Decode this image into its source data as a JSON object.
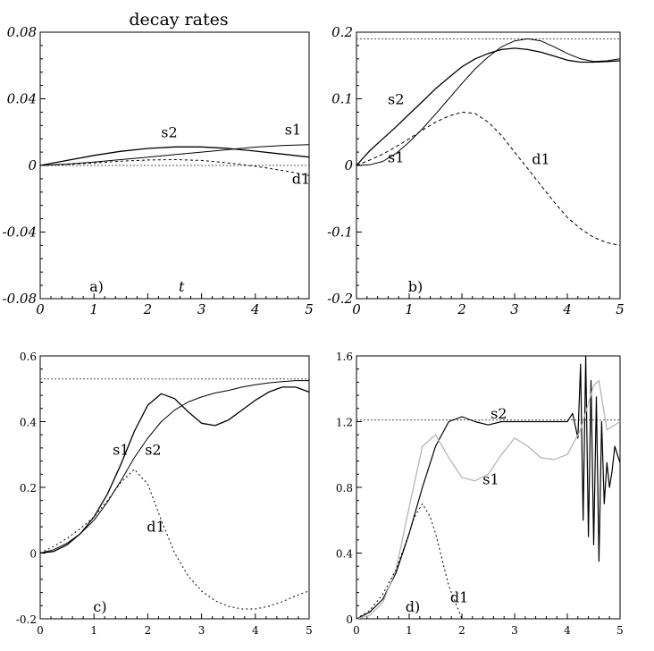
{
  "figure_title": "decay rates",
  "chart_data": [
    {
      "type": "line",
      "panel_label": "a)",
      "title": "decay rates",
      "xlabel": "t",
      "ylabel": "",
      "xlim": [
        0,
        5
      ],
      "ylim": [
        -0.08,
        0.08
      ],
      "x_ticks": [
        "0",
        "1",
        "2",
        "3",
        "4",
        "5"
      ],
      "y_ticks": [
        "0.08",
        "0.04",
        "0",
        "-0.04",
        "-0.08"
      ],
      "reference_line": 0,
      "grid": false,
      "series": [
        {
          "name": "s1",
          "x": [
            0,
            0.5,
            1,
            1.5,
            2,
            2.5,
            3,
            3.5,
            4,
            4.5,
            5
          ],
          "y": [
            0,
            0.0008,
            0.002,
            0.0035,
            0.005,
            0.0065,
            0.008,
            0.0095,
            0.011,
            0.012,
            0.0125
          ]
        },
        {
          "name": "s2",
          "x": [
            0,
            0.5,
            1,
            1.5,
            2,
            2.5,
            3,
            3.5,
            4,
            4.5,
            5
          ],
          "y": [
            0,
            0.003,
            0.006,
            0.0085,
            0.0102,
            0.0111,
            0.0111,
            0.0102,
            0.0086,
            0.0068,
            0.005
          ]
        },
        {
          "name": "d1",
          "x": [
            0,
            0.5,
            1,
            1.5,
            2,
            2.5,
            3,
            3.5,
            4,
            4.5,
            5
          ],
          "y": [
            0,
            0.0006,
            0.0015,
            0.0025,
            0.0033,
            0.0035,
            0.003,
            0.0015,
            -0.0005,
            -0.003,
            -0.006
          ]
        }
      ]
    },
    {
      "type": "line",
      "panel_label": "b)",
      "xlabel": "",
      "ylabel": "",
      "xlim": [
        0,
        5
      ],
      "ylim": [
        -0.2,
        0.2
      ],
      "x_ticks": [
        "0",
        "1",
        "2",
        "3",
        "4",
        "5"
      ],
      "y_ticks": [
        "0.2",
        "0.1",
        "0",
        "-0.1",
        "-0.2"
      ],
      "reference_line": 0.19,
      "grid": false,
      "series": [
        {
          "name": "s1",
          "x": [
            0,
            0.25,
            0.5,
            0.75,
            1,
            1.25,
            1.5,
            1.75,
            2,
            2.25,
            2.5,
            2.75,
            3,
            3.25,
            3.5,
            3.75,
            4,
            4.25,
            4.5,
            4.75,
            5
          ],
          "y": [
            0,
            0.001,
            0.006,
            0.018,
            0.035,
            0.055,
            0.077,
            0.1,
            0.123,
            0.145,
            0.163,
            0.178,
            0.187,
            0.19,
            0.187,
            0.178,
            0.168,
            0.16,
            0.156,
            0.157,
            0.16
          ]
        },
        {
          "name": "s2",
          "x": [
            0,
            0.25,
            0.5,
            0.75,
            1,
            1.25,
            1.5,
            1.75,
            2,
            2.25,
            2.5,
            2.75,
            3,
            3.25,
            3.5,
            3.75,
            4,
            4.25,
            4.5,
            4.75,
            5
          ],
          "y": [
            0,
            0.022,
            0.04,
            0.058,
            0.077,
            0.096,
            0.115,
            0.132,
            0.148,
            0.16,
            0.168,
            0.174,
            0.176,
            0.174,
            0.17,
            0.164,
            0.158,
            0.155,
            0.155,
            0.156,
            0.157
          ]
        },
        {
          "name": "d1",
          "x": [
            0,
            0.25,
            0.5,
            0.75,
            1,
            1.25,
            1.5,
            1.75,
            2,
            2.25,
            2.5,
            2.75,
            3,
            3.25,
            3.5,
            3.75,
            4,
            4.25,
            4.5,
            4.75,
            5
          ],
          "y": [
            0,
            0.008,
            0.017,
            0.028,
            0.04,
            0.053,
            0.065,
            0.074,
            0.08,
            0.078,
            0.065,
            0.045,
            0.02,
            -0.005,
            -0.03,
            -0.055,
            -0.078,
            -0.095,
            -0.108,
            -0.116,
            -0.12
          ]
        }
      ]
    },
    {
      "type": "line",
      "panel_label": "c)",
      "xlabel": "",
      "ylabel": "",
      "xlim": [
        0,
        5
      ],
      "ylim": [
        -0.2,
        0.6
      ],
      "x_ticks": [
        "0",
        "1",
        "2",
        "3",
        "4",
        "5"
      ],
      "y_ticks": [
        "0.6",
        "0.4",
        "0.2",
        "0",
        "-0.2"
      ],
      "reference_line": 0.53,
      "grid": false,
      "series": [
        {
          "name": "s1",
          "x": [
            0,
            0.25,
            0.5,
            0.75,
            1,
            1.25,
            1.5,
            1.75,
            2,
            2.25,
            2.5,
            2.75,
            3,
            3.25,
            3.5,
            3.75,
            4,
            4.25,
            4.5,
            4.75,
            5
          ],
          "y": [
            0,
            0.005,
            0.025,
            0.06,
            0.11,
            0.18,
            0.27,
            0.37,
            0.45,
            0.485,
            0.47,
            0.43,
            0.395,
            0.388,
            0.405,
            0.435,
            0.465,
            0.49,
            0.505,
            0.505,
            0.49
          ]
        },
        {
          "name": "s2",
          "x": [
            0,
            0.25,
            0.5,
            0.75,
            1,
            1.25,
            1.5,
            1.75,
            2,
            2.25,
            2.5,
            2.75,
            3,
            3.25,
            3.5,
            3.75,
            4,
            4.25,
            4.5,
            4.75,
            5
          ],
          "y": [
            0,
            0.01,
            0.03,
            0.06,
            0.1,
            0.155,
            0.22,
            0.29,
            0.35,
            0.4,
            0.435,
            0.46,
            0.475,
            0.487,
            0.495,
            0.505,
            0.512,
            0.518,
            0.522,
            0.525,
            0.525
          ]
        },
        {
          "name": "d1",
          "x": [
            0,
            0.25,
            0.5,
            0.75,
            1,
            1.25,
            1.5,
            1.75,
            2,
            2.25,
            2.5,
            2.75,
            3,
            3.25,
            3.5,
            3.75,
            4,
            4.25,
            4.5,
            4.75,
            5
          ],
          "y": [
            0,
            0.02,
            0.045,
            0.075,
            0.11,
            0.16,
            0.215,
            0.255,
            0.21,
            0.1,
            0.0,
            -0.07,
            -0.115,
            -0.145,
            -0.162,
            -0.17,
            -0.17,
            -0.162,
            -0.148,
            -0.13,
            -0.115
          ]
        }
      ]
    },
    {
      "type": "line",
      "panel_label": "d)",
      "xlabel": "",
      "ylabel": "",
      "xlim": [
        0,
        5
      ],
      "ylim": [
        0,
        1.6
      ],
      "x_ticks": [
        "0",
        "1",
        "2",
        "3",
        "4",
        "5"
      ],
      "y_ticks": [
        "1.6",
        "1.2",
        "0.8",
        "0.4",
        "0"
      ],
      "reference_line": 1.21,
      "grid": false,
      "series": [
        {
          "name": "s2",
          "x": [
            0,
            0.25,
            0.5,
            0.75,
            1,
            1.25,
            1.5,
            1.75,
            2,
            2.25,
            2.5,
            2.75,
            3,
            3.25,
            3.5,
            3.75,
            4,
            4.1,
            4.2,
            4.25,
            4.3,
            4.35,
            4.4,
            4.45,
            4.5,
            4.55,
            4.6,
            4.65,
            4.7,
            4.75,
            4.8,
            4.85,
            4.9,
            4.95,
            5
          ],
          "y": [
            0,
            0.04,
            0.12,
            0.28,
            0.52,
            0.8,
            1.05,
            1.2,
            1.23,
            1.2,
            1.18,
            1.2,
            1.2,
            1.2,
            1.2,
            1.2,
            1.2,
            1.25,
            1.1,
            1.55,
            0.6,
            1.6,
            0.5,
            1.45,
            0.45,
            1.35,
            0.35,
            1.2,
            0.7,
            0.95,
            0.8,
            0.9,
            1.05,
            1.0,
            0.95
          ]
        },
        {
          "name": "s1",
          "x": [
            0,
            0.25,
            0.5,
            0.75,
            1,
            1.25,
            1.5,
            1.75,
            2,
            2.25,
            2.5,
            2.75,
            3,
            3.25,
            3.5,
            3.75,
            4,
            4.25,
            4.5,
            4.6,
            4.75,
            5
          ],
          "y": [
            0,
            0.02,
            0.1,
            0.3,
            0.68,
            1.05,
            1.12,
            0.98,
            0.86,
            0.84,
            0.88,
            1.0,
            1.1,
            1.05,
            0.98,
            0.97,
            1.0,
            1.15,
            1.42,
            1.45,
            1.15,
            1.2
          ]
        },
        {
          "name": "d1",
          "x": [
            0,
            0.25,
            0.5,
            0.75,
            1,
            1.1,
            1.25,
            1.4,
            1.5,
            1.75,
            2
          ],
          "y": [
            0,
            0.05,
            0.15,
            0.3,
            0.52,
            0.62,
            0.7,
            0.62,
            0.52,
            0.2,
            0.0
          ]
        }
      ]
    }
  ]
}
